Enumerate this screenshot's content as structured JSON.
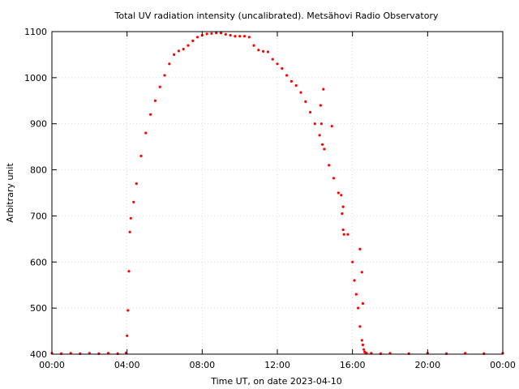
{
  "chart_data": {
    "type": "scatter",
    "title": "Total UV radiation intensity (uncalibrated). Metsähovi Radio Observatory",
    "xlabel": "Time UT, on date 2023-04-10",
    "ylabel": "Arbitrary unit",
    "xlim": [
      0,
      24
    ],
    "ylim": [
      400,
      1100
    ],
    "x_ticks": [
      0,
      4,
      8,
      12,
      16,
      20,
      24
    ],
    "x_tick_labels": [
      "00:00",
      "04:00",
      "08:00",
      "12:00",
      "16:00",
      "20:00",
      "00:00"
    ],
    "y_ticks": [
      400,
      500,
      600,
      700,
      800,
      900,
      1000,
      1100
    ],
    "y_tick_labels": [
      "400",
      "500",
      "600",
      "700",
      "800",
      "900",
      "1000",
      "1100"
    ],
    "grid": true,
    "point_color": "#ff0000",
    "series": [
      {
        "x": [
          0.0,
          0.5,
          1.0,
          1.5,
          2.0,
          2.5,
          3.0,
          3.5,
          3.95,
          4.0,
          4.05,
          4.1,
          4.15,
          4.2,
          4.35,
          4.5,
          4.75,
          5.0,
          5.25,
          5.5,
          5.75,
          6.0,
          6.25,
          6.5,
          6.75,
          7.0,
          7.25,
          7.5,
          7.75,
          8.0,
          8.25,
          8.5,
          8.75,
          9.0,
          9.25,
          9.5,
          9.75,
          10.0,
          10.25,
          10.5,
          10.75,
          11.0,
          11.25,
          11.5,
          11.75,
          12.0,
          12.25,
          12.5,
          12.75,
          13.0,
          13.25,
          13.5,
          13.75,
          14.0,
          14.25,
          14.5,
          14.75,
          15.0,
          15.25,
          15.5,
          15.75,
          16.0,
          16.1,
          16.2,
          16.3,
          16.4,
          16.5,
          16.55,
          16.6,
          16.65,
          16.7,
          16.75,
          17.0,
          17.5,
          18.0,
          19.0,
          20.0,
          21.0,
          22.0,
          23.0,
          24.0
        ],
        "y": [
          402,
          401,
          402,
          401,
          402,
          401,
          402,
          401,
          403,
          440,
          495,
          580,
          665,
          695,
          730,
          770,
          830,
          880,
          920,
          950,
          980,
          1005,
          1030,
          1050,
          1058,
          1062,
          1070,
          1080,
          1088,
          1092,
          1095,
          1096,
          1097,
          1097,
          1094,
          1092,
          1090,
          1090,
          1090,
          1088,
          1070,
          1060,
          1057,
          1056,
          1040,
          1030,
          1020,
          1005,
          992,
          983,
          968,
          948,
          925,
          900,
          875,
          845,
          810,
          782,
          750,
          720,
          660,
          600,
          560,
          530,
          500,
          460,
          430,
          420,
          410,
          405,
          403,
          402,
          402,
          401,
          402,
          401,
          402,
          401,
          402,
          401,
          402
        ]
      },
      {
        "x": [
          14.3,
          14.35,
          14.4,
          14.45,
          14.9,
          15.4,
          15.45,
          15.5,
          15.55,
          16.4,
          16.5,
          16.55
        ],
        "y": [
          940,
          900,
          855,
          975,
          895,
          745,
          705,
          670,
          660,
          628,
          578,
          510
        ]
      }
    ]
  }
}
